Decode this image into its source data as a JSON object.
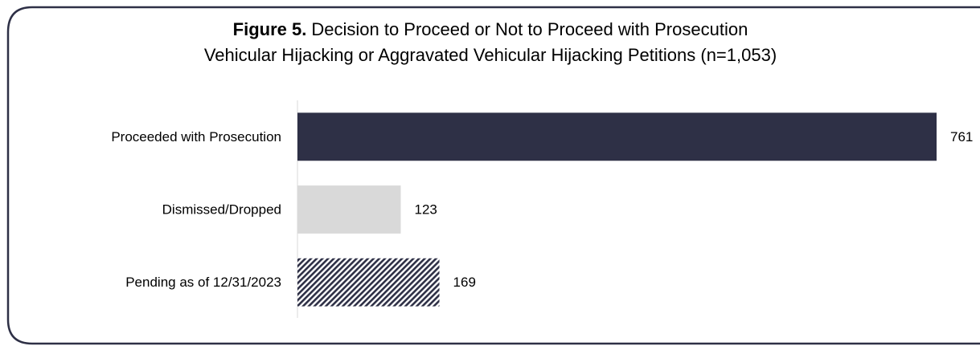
{
  "chart_data": {
    "type": "barh",
    "figure_label": "Figure 5.",
    "title": "Decision to Proceed or Not to Proceed with Prosecution",
    "subtitle": "Vehicular Hijacking or Aggravated Vehicular Hijacking Petitions (n=1,053)",
    "categories": [
      "Proceeded with Prosecution",
      "Dismissed/Dropped",
      "Pending as of 12/31/2023"
    ],
    "values": [
      761,
      123,
      169
    ],
    "colors": [
      "#2e3046",
      "#d9d9d9",
      "#2e3046"
    ],
    "hatched": [
      false,
      false,
      true
    ]
  }
}
